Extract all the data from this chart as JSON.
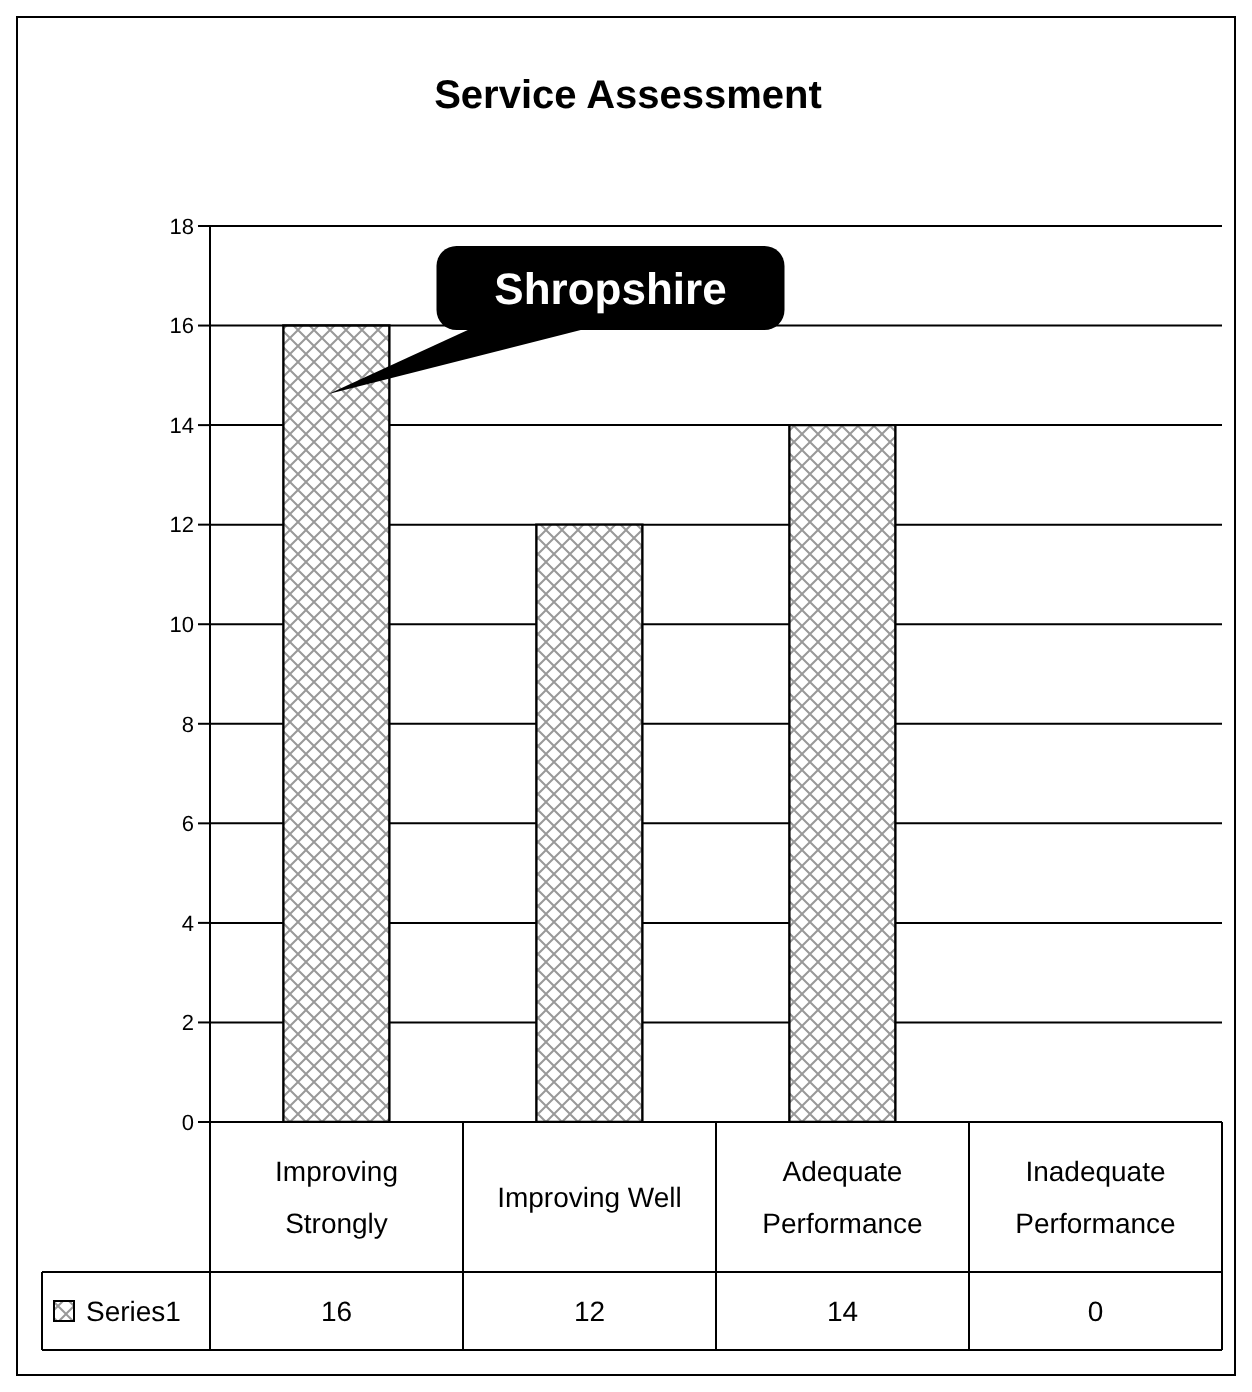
{
  "chart_data": {
    "type": "bar",
    "title": "Service Assessment",
    "categories": [
      "Improving Strongly",
      "Improving Well",
      "Adequate Performance",
      "Inadequate Performance"
    ],
    "series": [
      {
        "name": "Series1",
        "color": "#000000",
        "values": [
          16,
          12,
          14,
          0
        ]
      }
    ],
    "ylim": [
      0,
      18
    ],
    "yticks": [
      0,
      2,
      4,
      6,
      8,
      10,
      12,
      14,
      16,
      18
    ],
    "grid": "y",
    "data_labels": true,
    "legend": "bottom",
    "annotations": [
      "Shropshire"
    ]
  }
}
